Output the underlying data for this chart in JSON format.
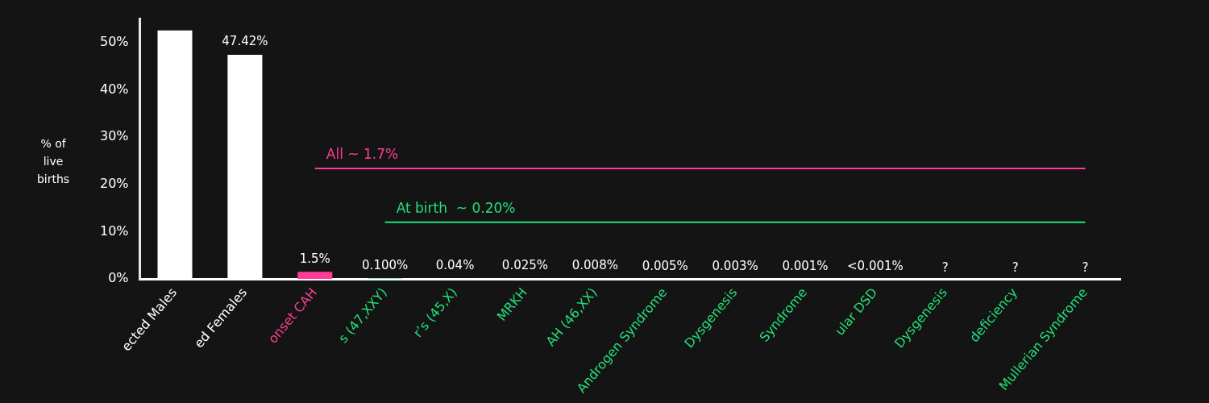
{
  "chart_data": {
    "type": "bar",
    "ylabel": "% of live births",
    "categories": [
      "ected Males",
      "ed Females",
      "onset CAH",
      "s (47,XXY)",
      "r’s (45,X)",
      "MRKH",
      "AH (46,XX)",
      "Androgen Syndrome",
      "Dysgenesis",
      "Syndrome",
      "ular DSD",
      "Dysgenesis",
      "deficiency",
      "Mullerian Syndrome"
    ],
    "series": [
      {
        "colors": [
          "#ffffff",
          "#ffffff",
          "#ff3d96",
          "#22e07a",
          "#22e07a",
          "#22e07a",
          "#22e07a",
          "#22e07a",
          "#22e07a",
          "#22e07a",
          "#22e07a",
          "#22e07a",
          "#22e07a",
          "#22e07a"
        ],
        "values": [
          52.6,
          47.42,
          1.5,
          0.1,
          0.04,
          0.025,
          0.008,
          0.005,
          0.003,
          0.001,
          0.0005,
          null,
          null,
          null
        ],
        "value_labels": [
          null,
          "47.42%",
          "1.5%",
          "0.100%",
          "0.04%",
          "0.025%",
          "0.008%",
          "0.005%",
          "0.003%",
          "0.001%",
          "<0.001%",
          "?",
          "?",
          "?"
        ]
      },
      {
        "type": "line",
        "name": "All ~ 1.7%",
        "color": "#ff3d96",
        "values": [
          null,
          null,
          23.4,
          23.4,
          23.4,
          23.4,
          23.4,
          23.4,
          23.4,
          23.4,
          23.4,
          23.4,
          23.4,
          23.4
        ]
      },
      {
        "type": "line",
        "name": "At birth  ~ 0.20%",
        "color": "#22e07a",
        "values": [
          null,
          null,
          null,
          12,
          12,
          12,
          12,
          12,
          12,
          12,
          12,
          12,
          12,
          12
        ]
      }
    ],
    "ylim": [
      0,
      55
    ],
    "yticks": [
      {
        "value": 0,
        "label": "0%"
      },
      {
        "value": 10,
        "label": "10%"
      },
      {
        "value": 20,
        "label": "20%"
      },
      {
        "value": 30,
        "label": "30%"
      },
      {
        "value": 40,
        "label": "40%"
      },
      {
        "value": 50,
        "label": "50%"
      }
    ],
    "grid": false,
    "legend": false
  }
}
